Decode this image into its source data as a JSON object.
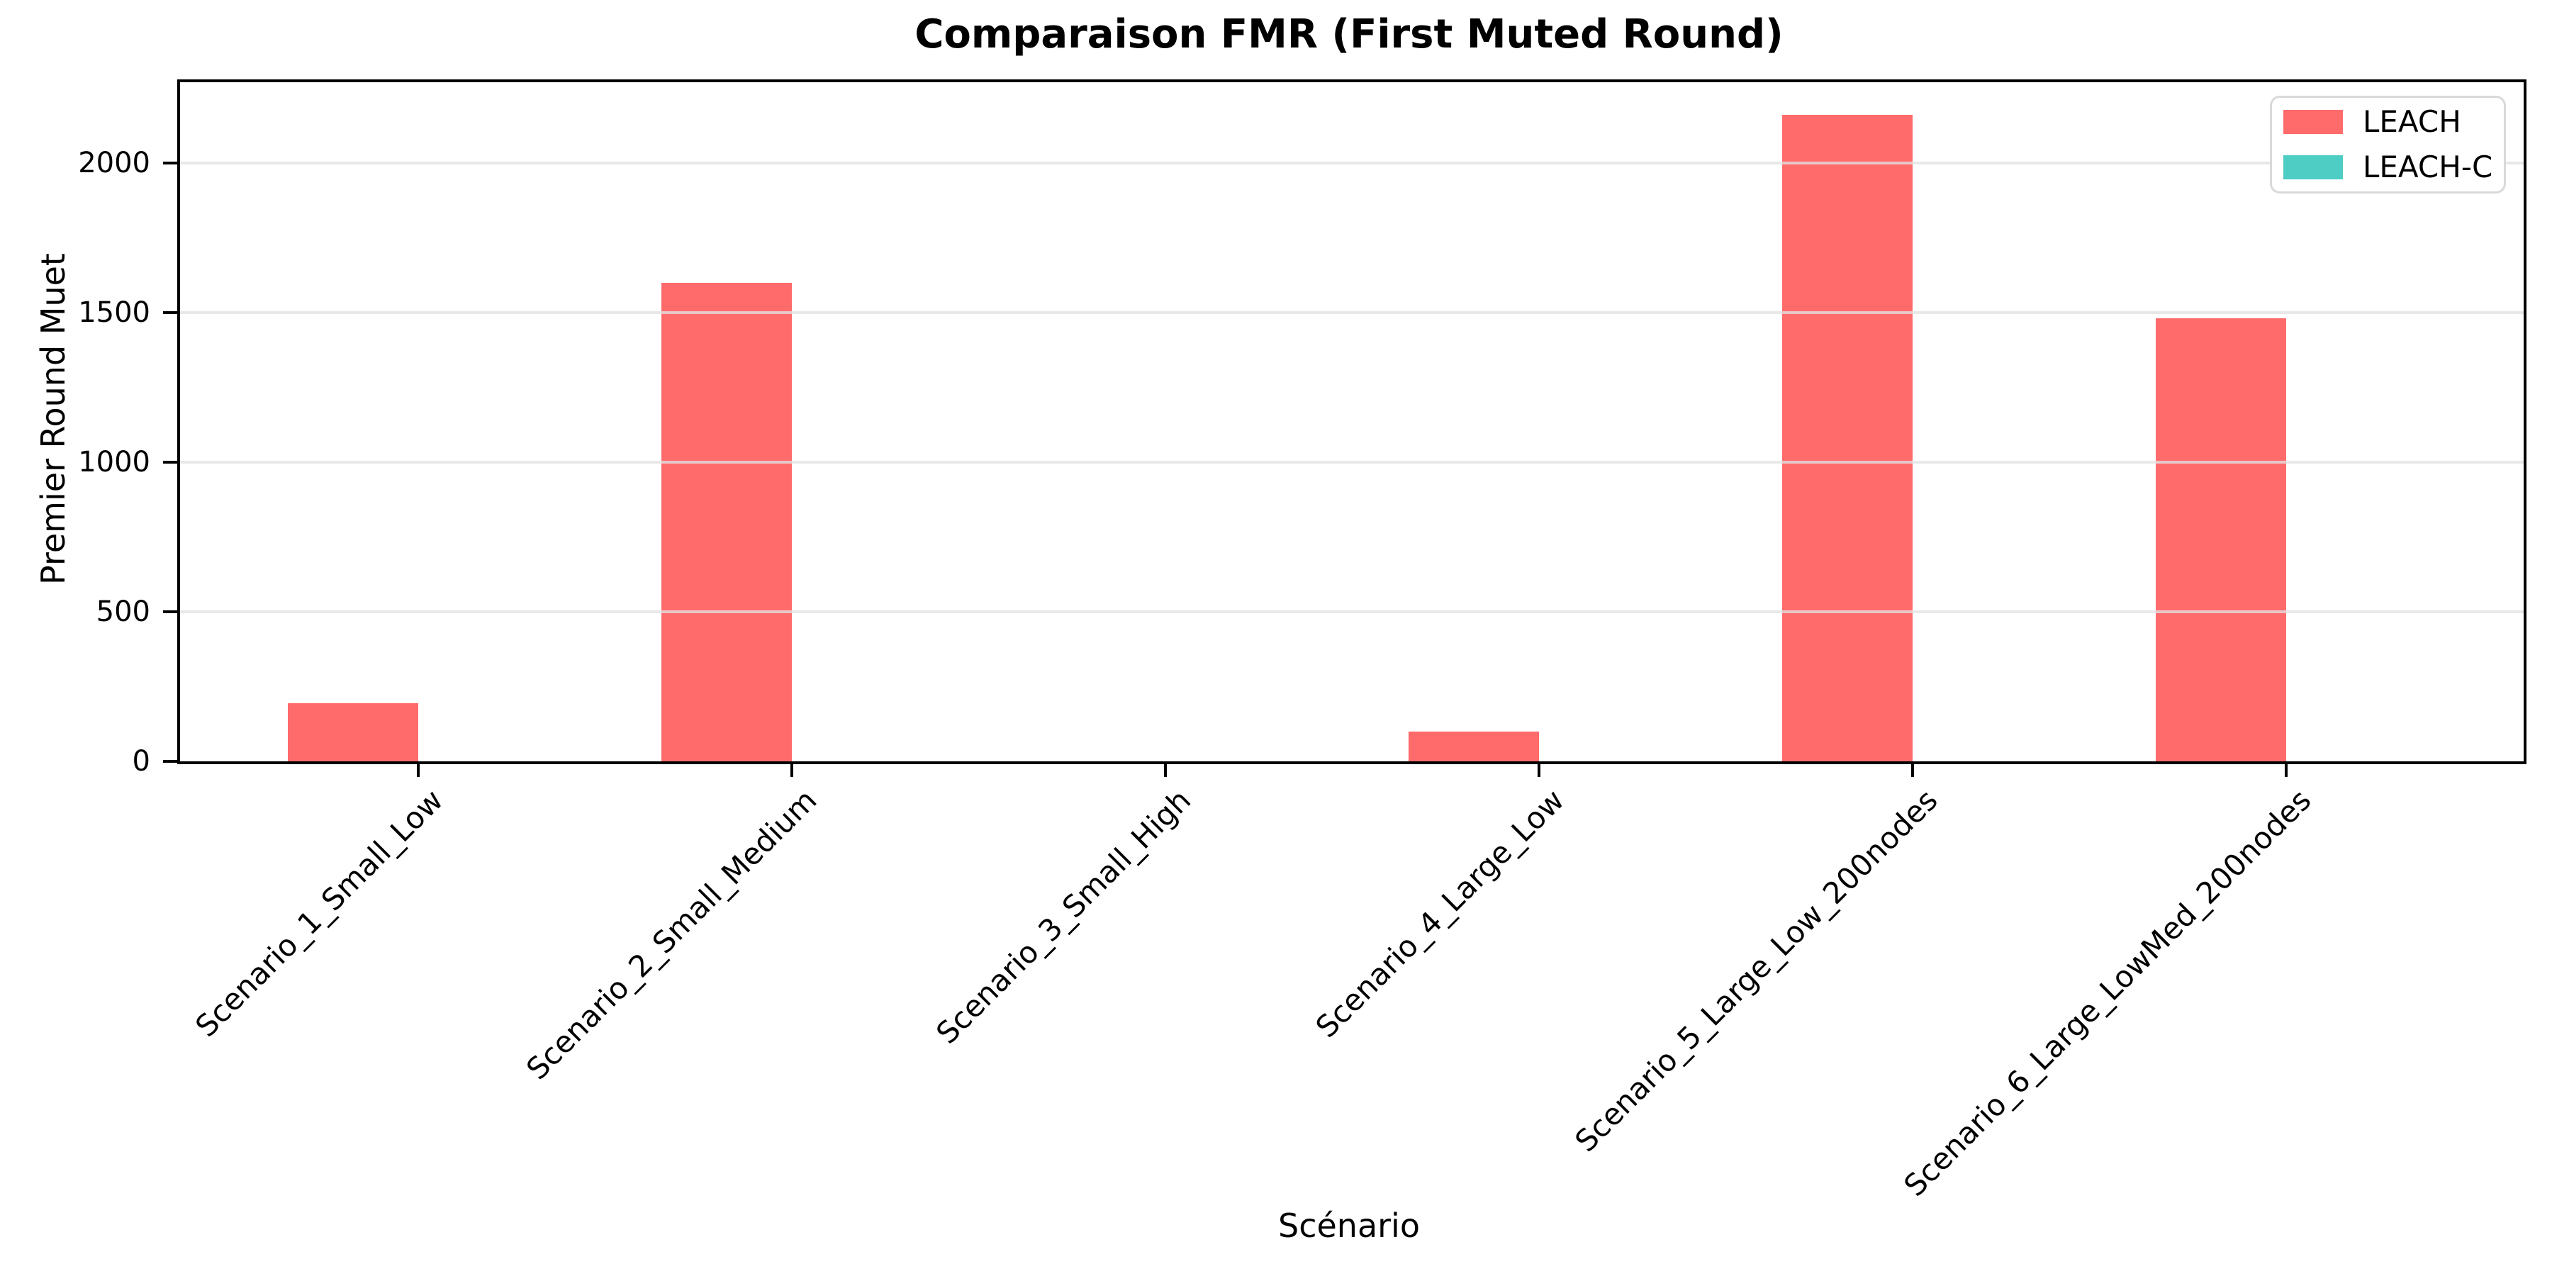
{
  "chart_data": {
    "type": "bar",
    "title": "Comparaison FMR (First Muted Round)",
    "xlabel": "Scénario",
    "ylabel": "Premier Round Muet",
    "categories": [
      "Scenario_1_Small_Low",
      "Scenario_2_Small_Medium",
      "Scenario_3_Small_High",
      "Scenario_4_Large_Low",
      "Scenario_5_Large_Low_200nodes",
      "Scenario_6_Large_LowMed_200nodes"
    ],
    "series": [
      {
        "name": "LEACH",
        "color": "#ff6b6b",
        "values": [
          195,
          1600,
          0,
          100,
          2160,
          1480
        ]
      },
      {
        "name": "LEACH-C",
        "color": "#4ecdc4",
        "values": [
          0,
          0,
          0,
          0,
          0,
          0
        ]
      }
    ],
    "yticks": [
      0,
      500,
      1000,
      1500,
      2000
    ],
    "ylim": [
      0,
      2270
    ],
    "grid": "horizontal-light",
    "legend_position": "upper-right",
    "xtick_rotation": 45
  }
}
